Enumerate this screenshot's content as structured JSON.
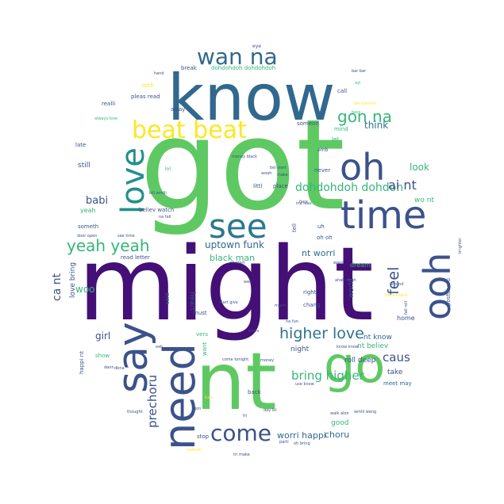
{
  "words": [
    {
      "text": "might",
      "color": "#440f76"
    },
    {
      "text": "got",
      "color": "#5ec962"
    },
    {
      "text": "know",
      "color": "#31688e"
    },
    {
      "text": "nt",
      "color": "#5ec962"
    },
    {
      "text": "time",
      "color": "#3b528b"
    },
    {
      "text": "go",
      "color": "#5ec962"
    },
    {
      "text": "need",
      "color": "#3b528b"
    },
    {
      "text": "say",
      "color": "#3b528b"
    },
    {
      "text": "love",
      "color": "#21908d"
    },
    {
      "text": "see",
      "color": "#2a788e"
    },
    {
      "text": "oh",
      "color": "#3b528b"
    },
    {
      "text": "ooh",
      "color": "#3b528b"
    },
    {
      "text": "beat beat",
      "color": "#fde725"
    },
    {
      "text": "wan na",
      "color": "#31688e"
    },
    {
      "text": "come",
      "color": "#3b528b"
    },
    {
      "text": "gon na",
      "color": "#35b779"
    },
    {
      "text": "yeah yeah",
      "color": "#35b779"
    },
    {
      "text": "higher love",
      "color": "#2c728e"
    },
    {
      "text": "dohdohdoh dohdoh",
      "color": "#35b779"
    },
    {
      "text": "uptown funk",
      "color": "#31688e"
    },
    {
      "text": "bring higher",
      "color": "#35b779"
    },
    {
      "text": "prechoru",
      "color": "#3b528b"
    },
    {
      "text": "feel",
      "color": "#3b528b"
    },
    {
      "text": "caus",
      "color": "#3b528b"
    },
    {
      "text": "ai nt",
      "color": "#3b528b"
    },
    {
      "text": "babi",
      "color": "#3b528b"
    },
    {
      "text": "think",
      "color": "#2c728e"
    },
    {
      "text": "look",
      "color": "#35b779"
    },
    {
      "text": "ca nt",
      "color": "#3b528b"
    },
    {
      "text": "woo",
      "color": "#35b779"
    },
    {
      "text": "girl",
      "color": "#3b528b"
    },
    {
      "text": "worri happi",
      "color": "#31688e"
    },
    {
      "text": "choru",
      "color": "#31688e"
    },
    {
      "text": "black man",
      "color": "#35b779"
    },
    {
      "text": "nt worri",
      "color": "#31688e"
    },
    {
      "text": "nt know",
      "color": "#31688e"
    },
    {
      "text": "nt believ",
      "color": "#35b779"
    },
    {
      "text": "night",
      "color": "#3b528b"
    },
    {
      "text": "roll deep",
      "color": "#3b528b"
    },
    {
      "text": "take",
      "color": "#3b528b"
    },
    {
      "text": "meet may",
      "color": "#31688e"
    },
    {
      "text": "good",
      "color": "#35b779"
    },
    {
      "text": "wo nt",
      "color": "#35b779"
    },
    {
      "text": "dream",
      "color": "#35b779"
    },
    {
      "text": "world",
      "color": "#3b528b"
    },
    {
      "text": "home",
      "color": "#3b528b"
    },
    {
      "text": "heart",
      "color": "#3b528b"
    },
    {
      "text": "love bring",
      "color": "#3b528b"
    },
    {
      "text": "someth",
      "color": "#3b528b"
    },
    {
      "text": "yeah",
      "color": "#35b779"
    },
    {
      "text": "still",
      "color": "#3b528b"
    },
    {
      "text": "late",
      "color": "#3b528b"
    },
    {
      "text": "realli",
      "color": "#3b528b"
    },
    {
      "text": "pleas read",
      "color": "#3b528b"
    },
    {
      "text": "away",
      "color": "#3b528b"
    },
    {
      "text": "noth",
      "color": "#fde725"
    },
    {
      "text": "break",
      "color": "#3b528b"
    },
    {
      "text": "dohdohdoh dohdohdoh",
      "color": "#35b779"
    },
    {
      "text": "call",
      "color": "#3b528b"
    },
    {
      "text": "someon",
      "color": "#3b528b"
    },
    {
      "text": "mind",
      "color": "#35b779"
    },
    {
      "text": "let",
      "color": "#35b779"
    },
    {
      "text": "believ watch",
      "color": "#3b528b"
    },
    {
      "text": "tell",
      "color": "#3b528b"
    },
    {
      "text": "uh",
      "color": "#3b528b"
    },
    {
      "text": "oh oh",
      "color": "#3b528b"
    },
    {
      "text": "read letter",
      "color": "#3b528b"
    },
    {
      "text": "said",
      "color": "#3b528b"
    },
    {
      "text": "must",
      "color": "#3b528b"
    },
    {
      "text": "vers",
      "color": "#35b779"
    },
    {
      "text": "want",
      "color": "#35b779"
    },
    {
      "text": "chang",
      "color": "#3b528b"
    },
    {
      "text": "right",
      "color": "#3b528b"
    },
    {
      "text": "happi nt",
      "color": "#3b528b"
    },
    {
      "text": "show",
      "color": "#35b779"
    },
    {
      "text": "back",
      "color": "#3b528b"
    },
    {
      "text": "stop",
      "color": "#3b528b"
    },
    {
      "text": "never",
      "color": "#3b528b"
    },
    {
      "text": "littl",
      "color": "#3b528b"
    },
    {
      "text": "place",
      "color": "#3b528b"
    },
    {
      "text": "postchoru",
      "color": "#3b528b"
    },
    {
      "text": "emb",
      "color": "#3b528b"
    },
    {
      "text": "eye",
      "color": "#3b528b"
    },
    {
      "text": "hand",
      "color": "#3b528b"
    },
    {
      "text": "lol",
      "color": "#35b779"
    },
    {
      "text": "ayi",
      "color": "#35b779"
    },
    {
      "text": "bass",
      "color": "#35b779"
    },
    {
      "text": "face",
      "color": "#3b528b"
    },
    {
      "text": "woah",
      "color": "#3b528b"
    },
    {
      "text": "make",
      "color": "#3b528b"
    },
    {
      "text": "kill wmlli",
      "color": "#3b528b"
    },
    {
      "text": "na fall",
      "color": "#3b528b"
    },
    {
      "text": "ina leav",
      "color": "#3b528b"
    },
    {
      "text": "door open",
      "color": "#3b528b"
    },
    {
      "text": "see time",
      "color": "#3b528b"
    },
    {
      "text": "around",
      "color": "#3b528b"
    },
    {
      "text": "brighter",
      "color": "#3b528b"
    },
    {
      "text": "worri",
      "color": "#3b528b"
    },
    {
      "text": "much",
      "color": "#3b528b"
    },
    {
      "text": "fall roll",
      "color": "#3b528b"
    },
    {
      "text": "na fun",
      "color": "#3b528b"
    },
    {
      "text": "evolv",
      "color": "#3b528b"
    },
    {
      "text": "money",
      "color": "#3b528b"
    },
    {
      "text": "know know",
      "color": "#3b528b"
    },
    {
      "text": "use know",
      "color": "#3b528b"
    },
    {
      "text": "walk alon",
      "color": "#3b528b"
    },
    {
      "text": "wmlli wang",
      "color": "#3b528b"
    },
    {
      "text": "parti",
      "color": "#3b528b"
    },
    {
      "text": "oh bring",
      "color": "#3b528b"
    },
    {
      "text": "tri make",
      "color": "#3b528b"
    },
    {
      "text": "everyb",
      "color": "#fde725"
    },
    {
      "text": "tri",
      "color": "#3b528b"
    },
    {
      "text": "turn",
      "color": "#fde725"
    },
    {
      "text": "thought",
      "color": "#3b528b"
    },
    {
      "text": "dann",
      "color": "#3b528b"
    },
    {
      "text": "dbna",
      "color": "#3b528b"
    },
    {
      "text": "gon",
      "color": "#3b528b"
    },
    {
      "text": "day lol",
      "color": "#3b528b"
    },
    {
      "text": "come tonight",
      "color": "#3b528b"
    },
    {
      "text": "bass knock",
      "color": "#fde725"
    },
    {
      "text": "ahah ahah",
      "color": "#3b528b"
    },
    {
      "text": "start give",
      "color": "#3b528b"
    },
    {
      "text": "nt start",
      "color": "#3b528b"
    },
    {
      "text": "eeh",
      "color": "#3b528b"
    },
    {
      "text": "well",
      "color": "#3b528b"
    },
    {
      "text": "money black",
      "color": "#3b528b"
    },
    {
      "text": "bel start",
      "color": "#3b528b"
    },
    {
      "text": "always love",
      "color": "#35b779"
    },
    {
      "text": "bel sunshin",
      "color": "#fde725"
    },
    {
      "text": "bar bar",
      "color": "#3b528b"
    }
  ]
}
